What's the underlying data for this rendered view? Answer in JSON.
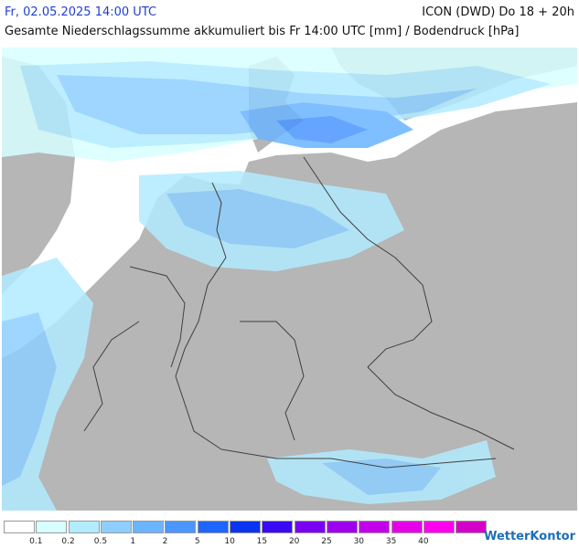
{
  "header": {
    "date": "Fr, 02.05.2025 14:00 UTC",
    "model": "ICON (DWD) Do 18 + 20h",
    "subtitle": "Gesamte Niederschlagssumme akkumuliert bis Fr 14:00 UTC [mm] / Bodendruck [hPa]"
  },
  "legend": {
    "colors": [
      "#ffffff",
      "#d8ffff",
      "#b2ecff",
      "#8ecfff",
      "#6bb4ff",
      "#4b96ff",
      "#1e66ff",
      "#0a33f2",
      "#3b0af4",
      "#7a00f2",
      "#9e00ee",
      "#c300ea",
      "#e600e8",
      "#ff00ee",
      "#d400c8"
    ],
    "labels": [
      "0.1",
      "0.2",
      "0.5",
      "1",
      "2",
      "5",
      "10",
      "15",
      "20",
      "25",
      "30",
      "35",
      "40"
    ]
  },
  "brand": "WetterKontor",
  "colors": {
    "land": "#b6b6b6",
    "sea": "#ffffff",
    "border": "#404040",
    "light_rain": "#d8ffff",
    "mid_rain": "#8ecfff",
    "heavy_rain": "#4b96ff"
  }
}
